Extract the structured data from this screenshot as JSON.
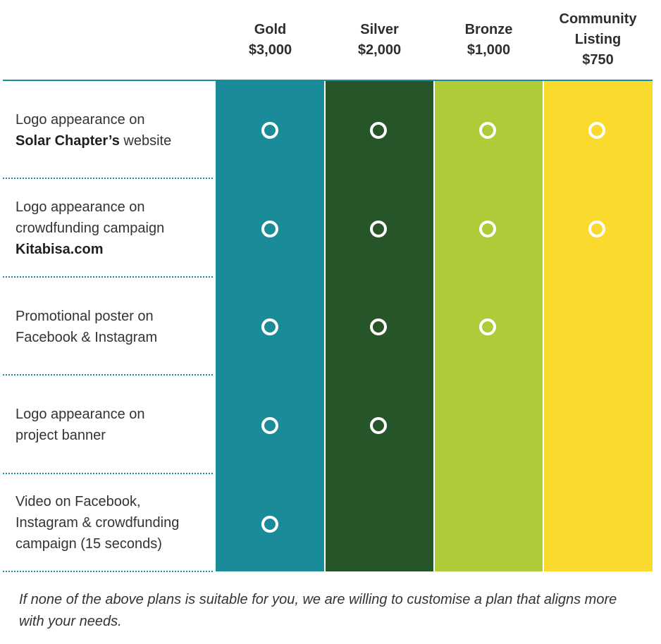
{
  "tiers": [
    {
      "name": "Gold",
      "price": "$3,000",
      "color": "#1a8b98"
    },
    {
      "name": "Silver",
      "price": "$2,000",
      "color": "#26552a"
    },
    {
      "name": "Bronze",
      "price": "$1,000",
      "color": "#adcc37"
    },
    {
      "name": "Community Listing",
      "price": "$750",
      "color": "#fada2d"
    }
  ],
  "community_tier_lines": [
    "Community",
    "Listing",
    "$750"
  ],
  "benefits": [
    {
      "line1": "Logo appearance on",
      "bold": "Solar Chapter’s",
      "rest": " website",
      "included_tiers": [
        "Gold",
        "Silver",
        "Bronze",
        "Community Listing"
      ]
    },
    {
      "line1": "Logo appearance on",
      "line2": "crowdfunding campaign",
      "bold": "Kitabisa.com",
      "included_tiers": [
        "Gold",
        "Silver",
        "Bronze",
        "Community Listing"
      ]
    },
    {
      "line1": "Promotional poster on",
      "line2": "Facebook & Instagram",
      "included_tiers": [
        "Gold",
        "Silver",
        "Bronze"
      ]
    },
    {
      "line1": "Logo appearance on",
      "line2": "project banner",
      "included_tiers": [
        "Gold",
        "Silver"
      ]
    },
    {
      "line1": "Video on Facebook,",
      "line2": "Instagram & crowdfunding",
      "line3": "campaign (15 seconds)",
      "included_tiers": [
        "Gold"
      ]
    }
  ],
  "check_icon": "ring-icon",
  "footnote": "If none of the above plans is suitable for you, we are willing to customise a plan that aligns more with your needs."
}
